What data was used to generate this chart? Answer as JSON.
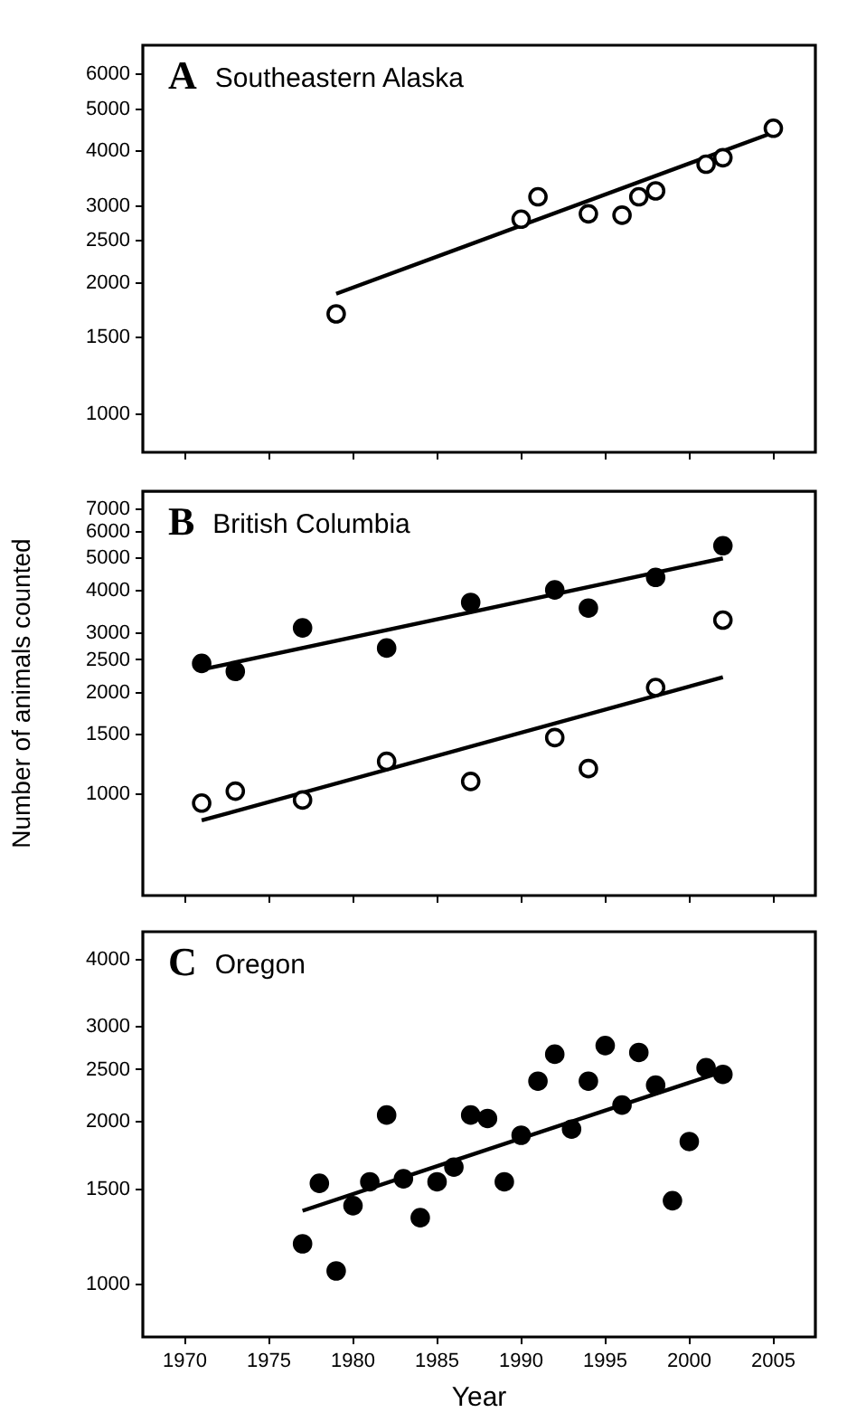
{
  "chart_data": [
    {
      "type": "scatter",
      "title": "Southeastern Alaska",
      "annotations": [
        "A"
      ],
      "log": "y",
      "tick_labels": "y",
      "marker": "circle",
      "xlim": [
        1967.5,
        2007.5
      ],
      "xticks": [
        1970,
        1975,
        1980,
        1985,
        1990,
        1995,
        2000,
        2005
      ],
      "ylim": [
        820,
        7000
      ],
      "yticks": [
        1000,
        1500,
        2000,
        2500,
        3000,
        4000,
        5000,
        6000
      ],
      "series": [
        {
          "color": "#ffffff",
          "x": [
            1979,
            1990,
            1991,
            1994,
            1996,
            1997,
            1998,
            2001,
            2002,
            2005
          ],
          "values": [
            1700,
            2800,
            3150,
            2880,
            2860,
            3150,
            3250,
            3740,
            3870,
            4520
          ]
        },
        {
          "type": "line",
          "marker": "none",
          "color": "#000000",
          "x": [
            1979,
            2005
          ],
          "values": [
            1890,
            4420
          ]
        }
      ]
    },
    {
      "type": "scatter",
      "title": "British Columbia",
      "annotations": [
        "B"
      ],
      "ylabel": "Number of animals counted",
      "log": "y",
      "tick_labels": "y",
      "marker": "circle",
      "xlim": [
        1967.5,
        2007.5
      ],
      "xticks": [
        1970,
        1975,
        1980,
        1985,
        1990,
        1995,
        2000,
        2005
      ],
      "ylim": [
        500,
        7900
      ],
      "yticks": [
        1000,
        1500,
        2000,
        2500,
        3000,
        4000,
        5000,
        6000,
        7000
      ],
      "series": [
        {
          "color": "#000000",
          "x": [
            1971,
            1973,
            1977,
            1982,
            1987,
            1992,
            1994,
            1998,
            2002
          ],
          "values": [
            2440,
            2310,
            3110,
            2710,
            3700,
            4030,
            3560,
            4390,
            5450
          ]
        },
        {
          "color": "#ffffff",
          "x": [
            1971,
            1973,
            1977,
            1982,
            1987,
            1992,
            1994,
            1998,
            2002
          ],
          "values": [
            940,
            1020,
            960,
            1250,
            1090,
            1470,
            1190,
            2070,
            3280
          ]
        },
        {
          "type": "line",
          "marker": "none",
          "color": "#000000",
          "x": [
            1971,
            2002
          ],
          "values": [
            2340,
            5000
          ]
        },
        {
          "type": "line",
          "marker": "none",
          "color": "#000000",
          "x": [
            1971,
            2002
          ],
          "values": [
            835,
            2220
          ]
        }
      ]
    },
    {
      "type": "scatter",
      "title": "Oregon",
      "annotations": [
        "C"
      ],
      "xlabel": "Year",
      "log": "y",
      "marker": "circle",
      "xlim": [
        1967.5,
        2007.5
      ],
      "xticks": [
        1970,
        1975,
        1980,
        1985,
        1990,
        1995,
        2000,
        2005
      ],
      "ylim": [
        800,
        4500
      ],
      "yticks": [
        1000,
        1500,
        2000,
        2500,
        3000,
        4000
      ],
      "series": [
        {
          "color": "#000000",
          "x": [
            1977,
            1978,
            1979,
            1980,
            1981,
            1982,
            1983,
            1984,
            1985,
            1986,
            1987,
            1988,
            1989,
            1990,
            1991,
            1992,
            1993,
            1994,
            1995,
            1996,
            1997,
            1998,
            1999,
            2000,
            2001,
            2002
          ],
          "values": [
            1190,
            1540,
            1060,
            1400,
            1550,
            2060,
            1570,
            1330,
            1550,
            1650,
            2060,
            2030,
            1550,
            1890,
            2380,
            2670,
            1940,
            2380,
            2770,
            2150,
            2690,
            2340,
            1430,
            1840,
            2520,
            2450
          ]
        },
        {
          "type": "line",
          "marker": "none",
          "color": "#000000",
          "x": [
            1977,
            2002
          ],
          "values": [
            1370,
            2480
          ]
        }
      ]
    }
  ]
}
